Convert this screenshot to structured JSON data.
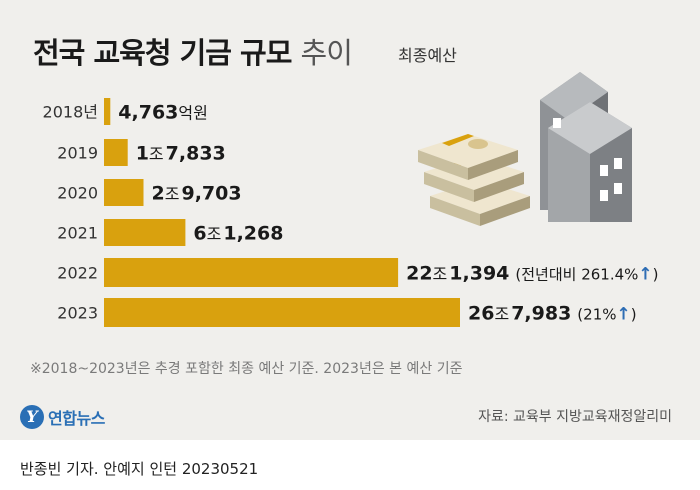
{
  "header": {
    "title_bold": "전국 교육청 기금 규모",
    "title_light": "추이",
    "subtitle": "최종예산"
  },
  "chart_data": {
    "type": "bar",
    "orientation": "horizontal",
    "unit": "억원",
    "categories": [
      "2018년",
      "2019",
      "2020",
      "2021",
      "2022",
      "2023"
    ],
    "values": [
      4763,
      17833,
      29703,
      61268,
      221394,
      267983
    ],
    "value_labels": [
      {
        "num1": "4,763",
        "unit1": "억원",
        "num2": "",
        "note": ""
      },
      {
        "num1": "1",
        "unit1": "조",
        "num2": "7,833",
        "note": ""
      },
      {
        "num1": "2",
        "unit1": "조",
        "num2": "9,703",
        "note": ""
      },
      {
        "num1": "6",
        "unit1": "조",
        "num2": "1,268",
        "note": ""
      },
      {
        "num1": "22",
        "unit1": "조",
        "num2": "1,394",
        "note": "(전년대비 261.4%",
        "note_arrow": "↑",
        "note_close": ")"
      },
      {
        "num1": "26",
        "unit1": "조",
        "num2": "7,983",
        "note": "(21%",
        "note_arrow": "↑",
        "note_close": ")"
      }
    ],
    "bar_color": "#d9a10e",
    "arrow_color": "#2e6db4",
    "grid": false
  },
  "footnote": "※2018~2023년은 추경 포함한 최종 예산 기준. 2023년은 본 예산 기준",
  "logo": {
    "mark": "Y",
    "text": "연합뉴스"
  },
  "source": "자료: 교육부 지방교육재정알리미",
  "credit": "반종빈 기자. 안예지 인턴  20230521",
  "colors": {
    "panel": "#f0efec",
    "bar": "#d9a10e",
    "accent_blue": "#2e6db4"
  }
}
